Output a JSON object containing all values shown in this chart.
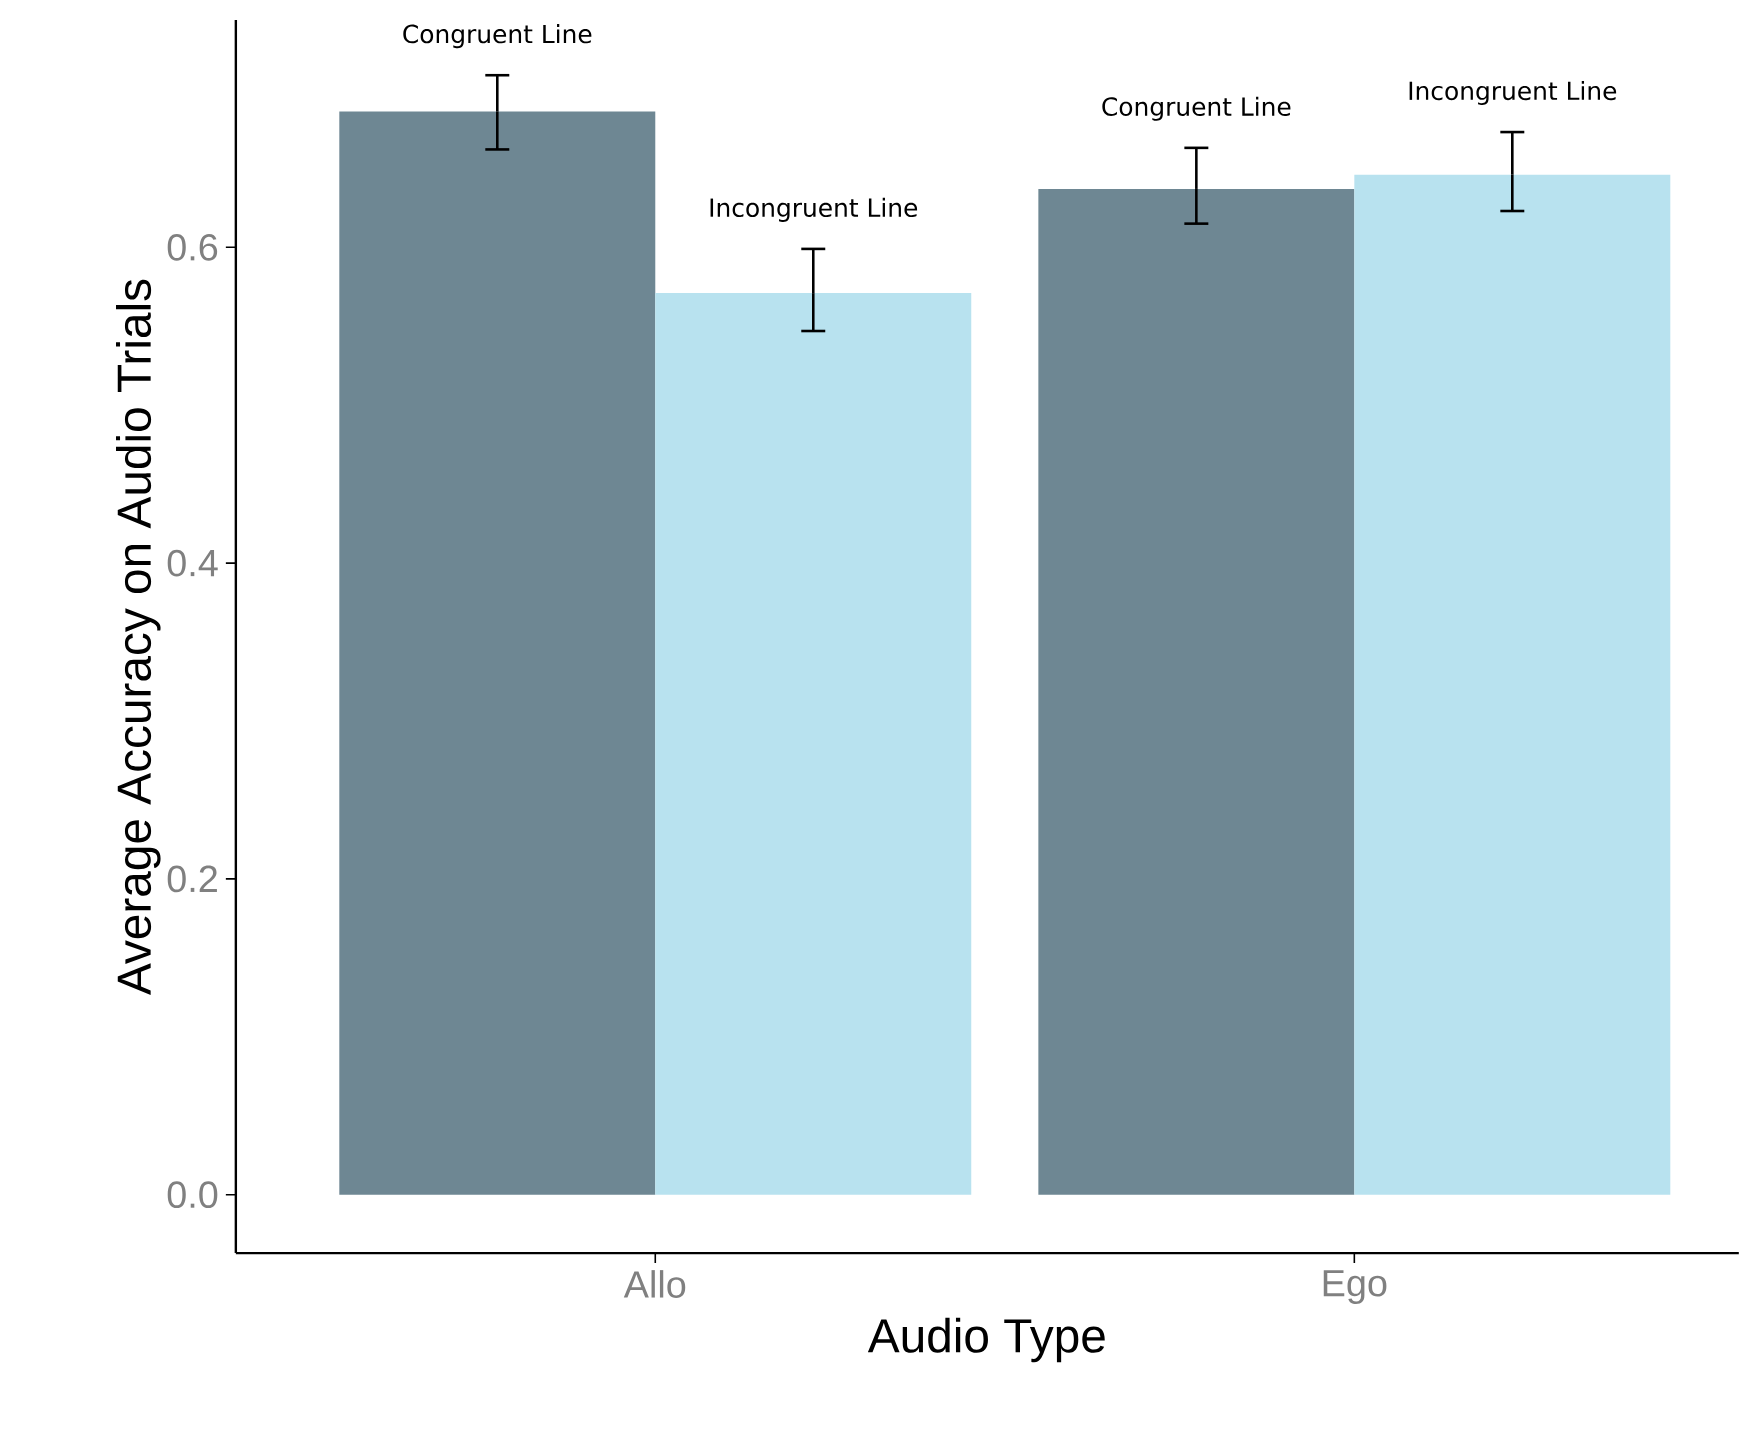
{
  "chart_data": {
    "type": "bar",
    "xlabel": "Audio Type",
    "ylabel": "Average Accuracy on Audio Trials",
    "categories": [
      "Allo",
      "Ego"
    ],
    "series": [
      {
        "name": "Congruent Line",
        "color": "#6e8793",
        "values": [
          0.686,
          0.637
        ],
        "errors": [
          [
            0.662,
            0.709
          ],
          [
            0.615,
            0.663
          ]
        ]
      },
      {
        "name": "Incongruent Line",
        "color": "#b8e2ef",
        "values": [
          0.571,
          0.646
        ],
        "errors": [
          [
            0.547,
            0.599
          ],
          [
            0.623,
            0.673
          ]
        ]
      }
    ],
    "ylim": [
      -0.037,
      0.744
    ],
    "yticks": [
      {
        "value": 0,
        "label": "0.0"
      },
      0.2,
      0.4,
      0.6
    ],
    "grid": false,
    "legend": false
  }
}
